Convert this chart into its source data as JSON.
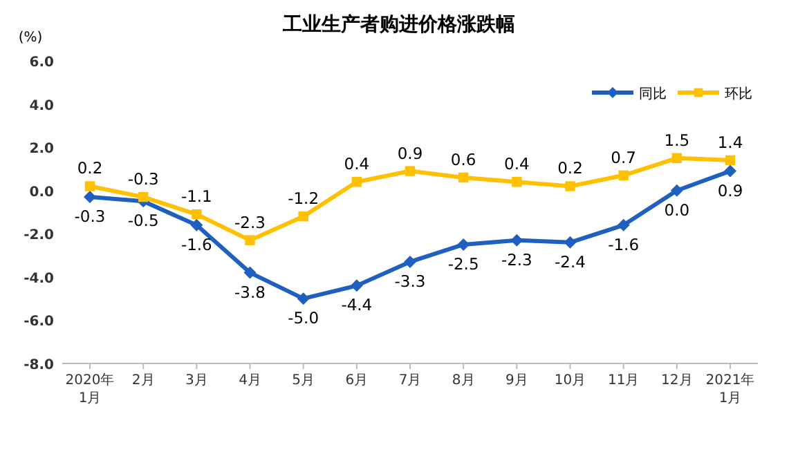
{
  "chart_data": {
    "type": "line",
    "title": "工业生产者购进价格涨跌幅",
    "ylabel": "(%)",
    "categories": [
      "2020年\n1月",
      "2月",
      "3月",
      "4月",
      "5月",
      "6月",
      "7月",
      "8月",
      "9月",
      "10月",
      "11月",
      "12月",
      "2021年\n1月"
    ],
    "series": [
      {
        "name": "同比",
        "color": "#1f5fbf",
        "marker": "diamond",
        "values": [
          -0.3,
          -0.5,
          -1.6,
          -3.8,
          -5.0,
          -4.4,
          -3.3,
          -2.5,
          -2.3,
          -2.4,
          -1.6,
          0.0,
          0.9
        ],
        "value_labels": [
          "-0.3",
          "-0.5",
          "-1.6",
          "-3.8",
          "-5.0",
          "-4.4",
          "-3.3",
          "-2.5",
          "-2.3",
          "-2.4",
          "-1.6",
          "0.0",
          "0.9"
        ]
      },
      {
        "name": "环比",
        "color": "#ffc000",
        "marker": "square",
        "values": [
          0.2,
          -0.3,
          -1.1,
          -2.3,
          -1.2,
          0.4,
          0.9,
          0.6,
          0.4,
          0.2,
          0.7,
          1.5,
          1.4
        ],
        "value_labels": [
          "0.2",
          "-0.3",
          "-1.1",
          "-2.3",
          "-1.2",
          "0.4",
          "0.9",
          "0.6",
          "0.4",
          "0.2",
          "0.7",
          "1.5",
          "1.4"
        ]
      }
    ],
    "ylim": [
      -8,
      6
    ],
    "yticks": [
      {
        "value": -8,
        "label": "-8.0"
      },
      {
        "value": -6,
        "label": "-6.0"
      },
      {
        "value": -4,
        "label": "-4.0"
      },
      {
        "value": -2,
        "label": "-2.0"
      },
      {
        "value": 0,
        "label": "0.0"
      },
      {
        "value": 2,
        "label": "2.0"
      },
      {
        "value": 4,
        "label": "4.0"
      },
      {
        "value": 6,
        "label": "6.0"
      }
    ],
    "grid": false,
    "legend": "top right",
    "line_style": "solid"
  }
}
